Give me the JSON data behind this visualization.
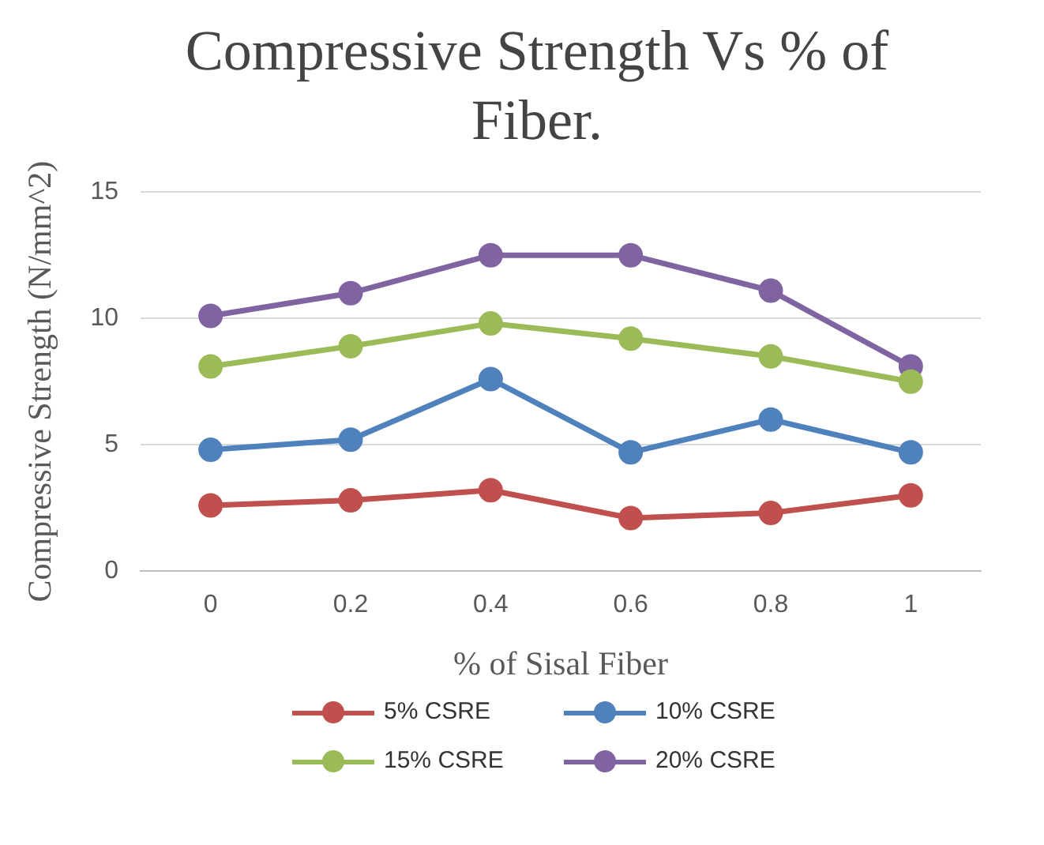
{
  "chart_data": {
    "type": "line",
    "title": "Compressive Strength Vs % of Fiber.",
    "xlabel": "% of Sisal Fiber",
    "ylabel": "Compressive Strength (N/mm^2)",
    "categories": [
      "0",
      "0.2",
      "0.4",
      "0.6",
      "0.8",
      "1"
    ],
    "series": [
      {
        "name": "5% CSRE",
        "color": "#c0504d",
        "values": [
          2.6,
          2.8,
          3.2,
          2.1,
          2.3,
          3.0
        ]
      },
      {
        "name": "10% CSRE",
        "color": "#4f81bd",
        "values": [
          4.8,
          5.2,
          7.6,
          4.7,
          6.0,
          4.7
        ]
      },
      {
        "name": "15% CSRE",
        "color": "#9bbb59",
        "values": [
          8.1,
          8.9,
          9.8,
          9.2,
          8.5,
          7.5
        ]
      },
      {
        "name": "20% CSRE",
        "color": "#8064a2",
        "values": [
          10.1,
          11.0,
          12.5,
          12.5,
          11.1,
          8.1
        ]
      }
    ],
    "ylim": [
      0,
      15
    ],
    "yticks": [
      0,
      5,
      10,
      15
    ],
    "grid": "y",
    "legend": "bottom",
    "marker": "circle",
    "line_style": "solid"
  }
}
